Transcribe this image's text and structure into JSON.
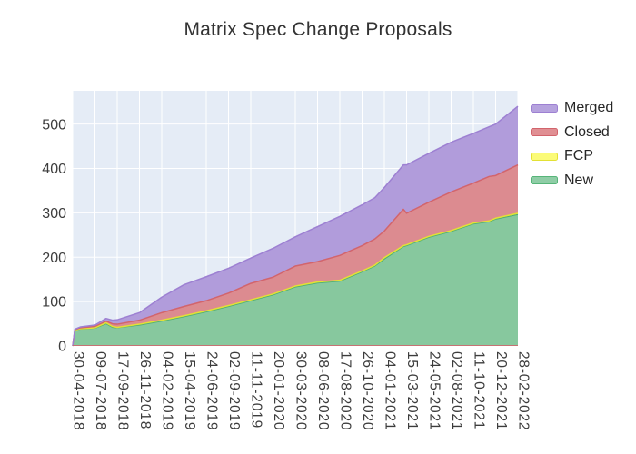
{
  "title": "Matrix Spec Change Proposals",
  "legend": [
    {
      "label": "Merged",
      "fill": "#b6a3de",
      "line": "#9d80d2"
    },
    {
      "label": "Closed",
      "fill": "#e08f93",
      "line": "#d2646c"
    },
    {
      "label": "FCP",
      "fill": "#fbfb78",
      "line": "#e3e135"
    },
    {
      "label": "New",
      "fill": "#8fcda6",
      "line": "#57b579"
    }
  ],
  "chart_data": {
    "type": "area",
    "stacked": true,
    "title": "Matrix Spec Change Proposals",
    "xlabel": "",
    "ylabel": "",
    "ylim": [
      0,
      575
    ],
    "grid": true,
    "legend_position": "right",
    "plot_bg": "#e5ecf6",
    "grid_color": "#ffffff",
    "tick_color": "#3c3c3c",
    "baseline_color": "#d2646c",
    "y_ticks": [
      0,
      100,
      200,
      300,
      400,
      500
    ],
    "x_tick_labels": [
      "30-04-2018",
      "09-07-2018",
      "17-09-2018",
      "26-11-2018",
      "04-02-2019",
      "15-04-2019",
      "24-06-2019",
      "02-09-2019",
      "11-11-2019",
      "20-01-2020",
      "30-03-2020",
      "08-06-2020",
      "17-08-2020",
      "26-10-2020",
      "04-01-2021",
      "15-03-2021",
      "24-05-2021",
      "02-08-2021",
      "11-10-2021",
      "20-12-2021",
      "28-02-2022"
    ],
    "series_order_bottom_to_top": [
      "New",
      "FCP",
      "Closed",
      "Merged"
    ],
    "series_styles": {
      "New": {
        "fill": "#87c89e",
        "line": "#4fae74",
        "lw": 1.2
      },
      "FCP": {
        "fill": "#f2f163",
        "line": "#e3e135",
        "lw": 1.5
      },
      "Closed": {
        "fill": "#dc8b90",
        "line": "#d2646c",
        "lw": 1.5
      },
      "Merged": {
        "fill": "#b19cdb",
        "line": "#9d80d2",
        "lw": 1.5
      }
    },
    "sample_columns": [
      "date",
      "New",
      "FCP",
      "Closed",
      "Merged"
    ],
    "samples": [
      [
        "30-04-2018",
        0,
        0,
        0,
        0
      ],
      [
        "07-05-2018",
        36,
        0,
        1,
        1
      ],
      [
        "25-05-2018",
        38,
        1,
        2,
        2
      ],
      [
        "09-07-2018",
        40,
        1,
        3,
        3
      ],
      [
        "13-08-2018",
        50,
        2,
        4,
        6
      ],
      [
        "02-09-2018",
        42,
        2,
        6,
        8
      ],
      [
        "17-09-2018",
        41,
        1,
        7,
        10
      ],
      [
        "26-11-2018",
        47,
        2,
        9,
        17
      ],
      [
        "04-02-2019",
        56,
        2,
        17,
        35
      ],
      [
        "15-04-2019",
        66,
        2,
        21,
        49
      ],
      [
        "24-06-2019",
        77,
        2,
        23,
        54
      ],
      [
        "02-09-2019",
        89,
        2,
        28,
        56
      ],
      [
        "11-11-2019",
        102,
        2,
        37,
        57
      ],
      [
        "20-01-2020",
        115,
        2,
        38,
        65
      ],
      [
        "30-03-2020",
        133,
        2,
        45,
        66
      ],
      [
        "08-06-2020",
        142,
        2,
        46,
        79
      ],
      [
        "17-08-2020",
        146,
        2,
        56,
        88
      ],
      [
        "26-10-2020",
        167,
        2,
        57,
        92
      ],
      [
        "05-12-2020",
        180,
        2,
        59,
        93
      ],
      [
        "04-01-2021",
        196,
        3,
        60,
        98
      ],
      [
        "05-03-2021",
        224,
        2,
        82,
        100
      ],
      [
        "15-03-2021",
        226,
        2,
        71,
        109
      ],
      [
        "24-05-2021",
        245,
        2,
        77,
        110
      ],
      [
        "02-08-2021",
        258,
        2,
        87,
        112
      ],
      [
        "11-10-2021",
        275,
        2,
        90,
        112
      ],
      [
        "30-11-2021",
        280,
        2,
        100,
        112
      ],
      [
        "20-12-2021",
        286,
        2,
        96,
        116
      ],
      [
        "28-02-2022",
        296,
        3,
        109,
        132
      ]
    ]
  }
}
